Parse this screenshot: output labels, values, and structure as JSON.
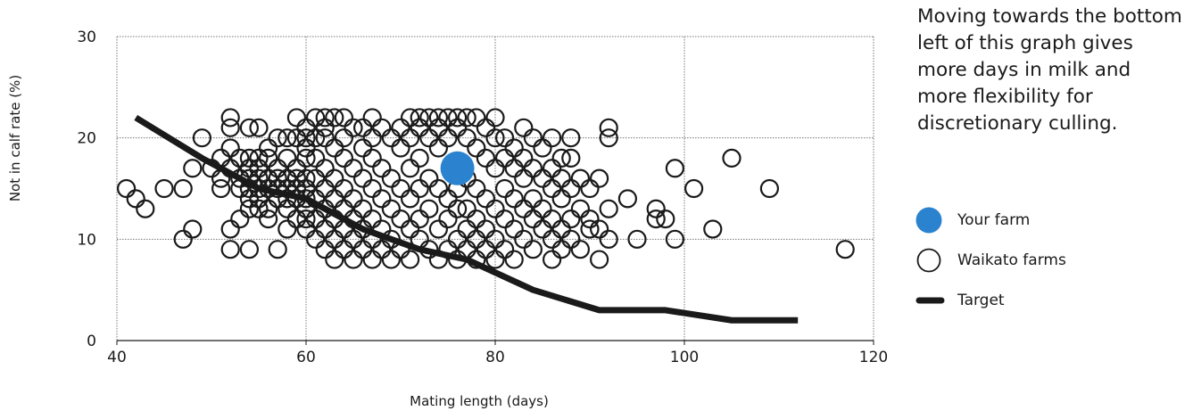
{
  "annotation": "Moving towards the bottom left of this graph gives more days in milk and more flexibility for discretionary culling.",
  "legend": {
    "your_farm": "Your farm",
    "waikato_farms": "Waikato farms",
    "target": "Target"
  },
  "chart_data": {
    "type": "scatter",
    "title": "",
    "xlabel": "Mating length (days)",
    "ylabel": "Not in calf rate (%)",
    "xlim": [
      40,
      120
    ],
    "ylim": [
      0,
      30
    ],
    "xticks": [
      40,
      60,
      80,
      100,
      120
    ],
    "yticks": [
      0,
      10,
      20,
      30
    ],
    "grid": true,
    "colors": {
      "your_farm": "#2b83cf",
      "waikato": "#1a1a1a",
      "target": "#1a1a1a"
    },
    "series": [
      {
        "name": "Waikato farms",
        "marker": "hollow-circle",
        "points": [
          [
            41,
            15
          ],
          [
            42,
            14
          ],
          [
            43,
            13
          ],
          [
            45,
            15
          ],
          [
            47,
            15
          ],
          [
            47,
            10
          ],
          [
            48,
            11
          ],
          [
            48,
            17
          ],
          [
            49,
            20
          ],
          [
            50,
            17
          ],
          [
            51,
            18
          ],
          [
            51,
            16
          ],
          [
            51,
            15
          ],
          [
            52,
            22
          ],
          [
            52,
            21
          ],
          [
            52,
            19
          ],
          [
            52,
            17
          ],
          [
            52,
            11
          ],
          [
            52,
            9
          ],
          [
            53,
            18
          ],
          [
            53,
            16
          ],
          [
            53,
            15
          ],
          [
            53,
            12
          ],
          [
            54,
            21
          ],
          [
            54,
            18
          ],
          [
            54,
            17
          ],
          [
            54,
            16
          ],
          [
            54,
            15
          ],
          [
            54,
            14
          ],
          [
            54,
            13
          ],
          [
            54,
            9
          ],
          [
            55,
            21
          ],
          [
            55,
            18
          ],
          [
            55,
            17
          ],
          [
            55,
            16
          ],
          [
            55,
            15
          ],
          [
            55,
            14
          ],
          [
            55,
            13
          ],
          [
            56,
            19
          ],
          [
            56,
            18
          ],
          [
            56,
            16
          ],
          [
            56,
            15
          ],
          [
            56,
            13
          ],
          [
            56,
            12
          ],
          [
            57,
            20
          ],
          [
            57,
            17
          ],
          [
            57,
            16
          ],
          [
            57,
            15
          ],
          [
            57,
            14
          ],
          [
            57,
            9
          ],
          [
            58,
            20
          ],
          [
            58,
            18
          ],
          [
            58,
            16
          ],
          [
            58,
            15
          ],
          [
            58,
            14
          ],
          [
            58,
            13
          ],
          [
            58,
            11
          ],
          [
            59,
            22
          ],
          [
            59,
            20
          ],
          [
            59,
            17
          ],
          [
            59,
            16
          ],
          [
            59,
            15
          ],
          [
            59,
            14
          ],
          [
            59,
            12
          ],
          [
            60,
            21
          ],
          [
            60,
            20
          ],
          [
            60,
            19
          ],
          [
            60,
            18
          ],
          [
            60,
            16
          ],
          [
            60,
            15
          ],
          [
            60,
            14
          ],
          [
            60,
            13
          ],
          [
            60,
            12
          ],
          [
            60,
            11
          ],
          [
            61,
            22
          ],
          [
            61,
            20
          ],
          [
            61,
            18
          ],
          [
            61,
            16
          ],
          [
            61,
            14
          ],
          [
            61,
            12
          ],
          [
            61,
            10
          ],
          [
            62,
            22
          ],
          [
            62,
            21
          ],
          [
            62,
            20
          ],
          [
            62,
            17
          ],
          [
            62,
            15
          ],
          [
            62,
            13
          ],
          [
            62,
            11
          ],
          [
            62,
            9
          ],
          [
            63,
            22
          ],
          [
            63,
            19
          ],
          [
            63,
            16
          ],
          [
            63,
            14
          ],
          [
            63,
            12
          ],
          [
            63,
            10
          ],
          [
            63,
            8
          ],
          [
            64,
            22
          ],
          [
            64,
            20
          ],
          [
            64,
            18
          ],
          [
            64,
            15
          ],
          [
            64,
            13
          ],
          [
            64,
            11
          ],
          [
            64,
            9
          ],
          [
            65,
            21
          ],
          [
            65,
            17
          ],
          [
            65,
            14
          ],
          [
            65,
            12
          ],
          [
            65,
            10
          ],
          [
            65,
            8
          ],
          [
            66,
            21
          ],
          [
            66,
            19
          ],
          [
            66,
            16
          ],
          [
            66,
            13
          ],
          [
            66,
            11
          ],
          [
            66,
            9
          ],
          [
            67,
            22
          ],
          [
            67,
            20
          ],
          [
            67,
            18
          ],
          [
            67,
            15
          ],
          [
            67,
            12
          ],
          [
            67,
            10
          ],
          [
            67,
            8
          ],
          [
            68,
            21
          ],
          [
            68,
            17
          ],
          [
            68,
            14
          ],
          [
            68,
            11
          ],
          [
            68,
            9
          ],
          [
            69,
            20
          ],
          [
            69,
            16
          ],
          [
            69,
            13
          ],
          [
            69,
            10
          ],
          [
            69,
            8
          ],
          [
            70,
            21
          ],
          [
            70,
            19
          ],
          [
            70,
            15
          ],
          [
            70,
            12
          ],
          [
            70,
            9
          ],
          [
            71,
            22
          ],
          [
            71,
            20
          ],
          [
            71,
            17
          ],
          [
            71,
            14
          ],
          [
            71,
            11
          ],
          [
            71,
            8
          ],
          [
            72,
            22
          ],
          [
            72,
            21
          ],
          [
            72,
            18
          ],
          [
            72,
            15
          ],
          [
            72,
            12
          ],
          [
            72,
            10
          ],
          [
            73,
            22
          ],
          [
            73,
            20
          ],
          [
            73,
            16
          ],
          [
            73,
            13
          ],
          [
            73,
            9
          ],
          [
            74,
            22
          ],
          [
            74,
            21
          ],
          [
            74,
            19
          ],
          [
            74,
            15
          ],
          [
            74,
            11
          ],
          [
            74,
            8
          ],
          [
            75,
            22
          ],
          [
            75,
            20
          ],
          [
            75,
            14
          ],
          [
            75,
            12
          ],
          [
            75,
            9
          ],
          [
            76,
            22
          ],
          [
            76,
            21
          ],
          [
            76,
            15
          ],
          [
            76,
            13
          ],
          [
            76,
            10
          ],
          [
            76,
            8
          ],
          [
            77,
            22
          ],
          [
            77,
            20
          ],
          [
            77,
            16
          ],
          [
            77,
            13
          ],
          [
            77,
            11
          ],
          [
            77,
            9
          ],
          [
            78,
            22
          ],
          [
            78,
            19
          ],
          [
            78,
            15
          ],
          [
            78,
            12
          ],
          [
            78,
            10
          ],
          [
            78,
            8
          ],
          [
            79,
            21
          ],
          [
            79,
            18
          ],
          [
            79,
            14
          ],
          [
            79,
            11
          ],
          [
            79,
            9
          ],
          [
            80,
            22
          ],
          [
            80,
            20
          ],
          [
            80,
            17
          ],
          [
            80,
            13
          ],
          [
            80,
            10
          ],
          [
            80,
            8
          ],
          [
            81,
            20
          ],
          [
            81,
            18
          ],
          [
            81,
            15
          ],
          [
            81,
            12
          ],
          [
            81,
            9
          ],
          [
            82,
            19
          ],
          [
            82,
            17
          ],
          [
            82,
            14
          ],
          [
            82,
            11
          ],
          [
            82,
            8
          ],
          [
            83,
            21
          ],
          [
            83,
            18
          ],
          [
            83,
            16
          ],
          [
            83,
            13
          ],
          [
            83,
            10
          ],
          [
            84,
            20
          ],
          [
            84,
            17
          ],
          [
            84,
            14
          ],
          [
            84,
            12
          ],
          [
            84,
            9
          ],
          [
            85,
            19
          ],
          [
            85,
            16
          ],
          [
            85,
            13
          ],
          [
            85,
            11
          ],
          [
            86,
            20
          ],
          [
            86,
            17
          ],
          [
            86,
            15
          ],
          [
            86,
            12
          ],
          [
            86,
            10
          ],
          [
            86,
            8
          ],
          [
            87,
            18
          ],
          [
            87,
            16
          ],
          [
            87,
            14
          ],
          [
            87,
            11
          ],
          [
            87,
            9
          ],
          [
            88,
            20
          ],
          [
            88,
            18
          ],
          [
            88,
            15
          ],
          [
            88,
            12
          ],
          [
            88,
            10
          ],
          [
            89,
            16
          ],
          [
            89,
            13
          ],
          [
            89,
            9
          ],
          [
            90,
            15
          ],
          [
            90,
            12
          ],
          [
            90,
            11
          ],
          [
            91,
            16
          ],
          [
            91,
            11
          ],
          [
            91,
            8
          ],
          [
            92,
            21
          ],
          [
            92,
            20
          ],
          [
            92,
            13
          ],
          [
            92,
            10
          ],
          [
            94,
            14
          ],
          [
            95,
            10
          ],
          [
            97,
            13
          ],
          [
            97,
            12
          ],
          [
            98,
            12
          ],
          [
            99,
            17
          ],
          [
            99,
            10
          ],
          [
            101,
            15
          ],
          [
            103,
            11
          ],
          [
            105,
            18
          ],
          [
            109,
            15
          ],
          [
            117,
            9
          ]
        ]
      },
      {
        "name": "Your farm",
        "marker": "filled-circle",
        "points": [
          [
            76,
            17
          ]
        ]
      },
      {
        "name": "Target",
        "marker": "line",
        "points": [
          [
            42,
            22
          ],
          [
            49,
            18
          ],
          [
            55,
            15
          ],
          [
            60,
            14
          ],
          [
            66,
            11
          ],
          [
            72,
            9
          ],
          [
            77,
            8
          ],
          [
            84,
            5
          ],
          [
            91,
            3
          ],
          [
            98,
            3
          ],
          [
            105,
            2
          ],
          [
            112,
            2
          ]
        ]
      }
    ]
  }
}
